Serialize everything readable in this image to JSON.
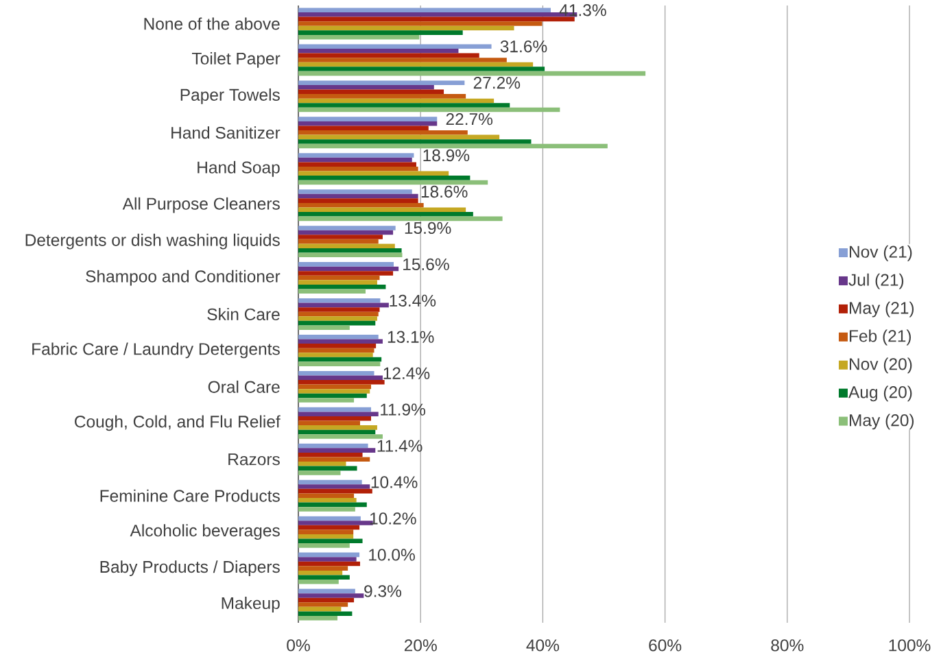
{
  "chart_data": {
    "type": "bar",
    "orientation": "horizontal",
    "categories": [
      "None of the above",
      "Toilet Paper",
      "Paper Towels",
      "Hand Sanitizer",
      "Hand Soap",
      "All Purpose Cleaners",
      "Detergents or dish washing liquids",
      "Shampoo and Conditioner",
      "Skin Care",
      "Fabric Care / Laundry Detergents",
      "Oral Care",
      "Cough, Cold, and Flu Relief",
      "Razors",
      "Feminine Care Products",
      "Alcoholic beverages",
      "Baby Products / Diapers",
      "Makeup"
    ],
    "series": [
      {
        "name": "Nov (21)",
        "color": "#879fd5",
        "values": [
          41.3,
          31.6,
          27.2,
          22.7,
          18.9,
          18.6,
          15.9,
          15.6,
          13.4,
          13.1,
          12.4,
          11.9,
          11.4,
          10.4,
          10.2,
          10.0,
          9.3
        ],
        "value_labels": [
          "41.3%",
          "31.6%",
          "27.2%",
          "22.7%",
          "18.9%",
          "18.6%",
          "15.9%",
          "15.6%",
          "13.4%",
          "13.1%",
          "12.4%",
          "11.9%",
          "11.4%",
          "10.4%",
          "10.2%",
          "10.0%",
          "9.3%"
        ]
      },
      {
        "name": "Jul (21)",
        "color": "#67378a",
        "values": [
          45.6,
          26.2,
          22.2,
          22.7,
          18.6,
          19.6,
          15.5,
          16.4,
          14.8,
          13.8,
          13.8,
          13.1,
          12.6,
          11.7,
          12.2,
          9.5,
          10.7
        ]
      },
      {
        "name": "May (21)",
        "color": "#b22008",
        "values": [
          45.2,
          29.6,
          23.8,
          21.3,
          19.3,
          19.6,
          13.8,
          15.5,
          13.3,
          12.7,
          14.1,
          11.9,
          10.5,
          12.1,
          10.0,
          10.1,
          9.1
        ]
      },
      {
        "name": "Feb (21)",
        "color": "#c55a11",
        "values": [
          39.9,
          34.1,
          27.4,
          27.7,
          19.6,
          20.5,
          13.1,
          13.3,
          13.1,
          12.4,
          11.9,
          10.1,
          11.7,
          9.1,
          9.0,
          8.1,
          8.1
        ]
      },
      {
        "name": "Nov (20)",
        "color": "#c5a823",
        "values": [
          35.3,
          38.4,
          32.0,
          32.9,
          24.6,
          27.4,
          15.8,
          12.9,
          12.9,
          12.2,
          11.7,
          12.9,
          7.8,
          9.5,
          9.0,
          7.2,
          7.0
        ]
      },
      {
        "name": "Aug (20)",
        "color": "#007a2c",
        "values": [
          26.9,
          40.3,
          34.6,
          38.1,
          28.1,
          28.6,
          16.9,
          14.3,
          12.6,
          13.6,
          11.2,
          12.6,
          9.6,
          11.2,
          10.5,
          8.4,
          8.8
        ]
      },
      {
        "name": "May (20)",
        "color": "#8bbf79",
        "values": [
          19.8,
          56.8,
          42.8,
          50.6,
          31.0,
          33.4,
          17.0,
          11.0,
          8.4,
          13.4,
          9.1,
          13.8,
          6.9,
          9.3,
          8.4,
          6.6,
          6.4
        ]
      }
    ],
    "xlim": [
      0,
      100
    ],
    "xticks": [
      {
        "value": 0,
        "label": "0%"
      },
      {
        "value": 20,
        "label": "20%"
      },
      {
        "value": 40,
        "label": "40%"
      },
      {
        "value": 60,
        "label": "60%"
      },
      {
        "value": 80,
        "label": "80%"
      },
      {
        "value": 100,
        "label": "100%"
      }
    ],
    "grid": "x",
    "legend": "right"
  }
}
